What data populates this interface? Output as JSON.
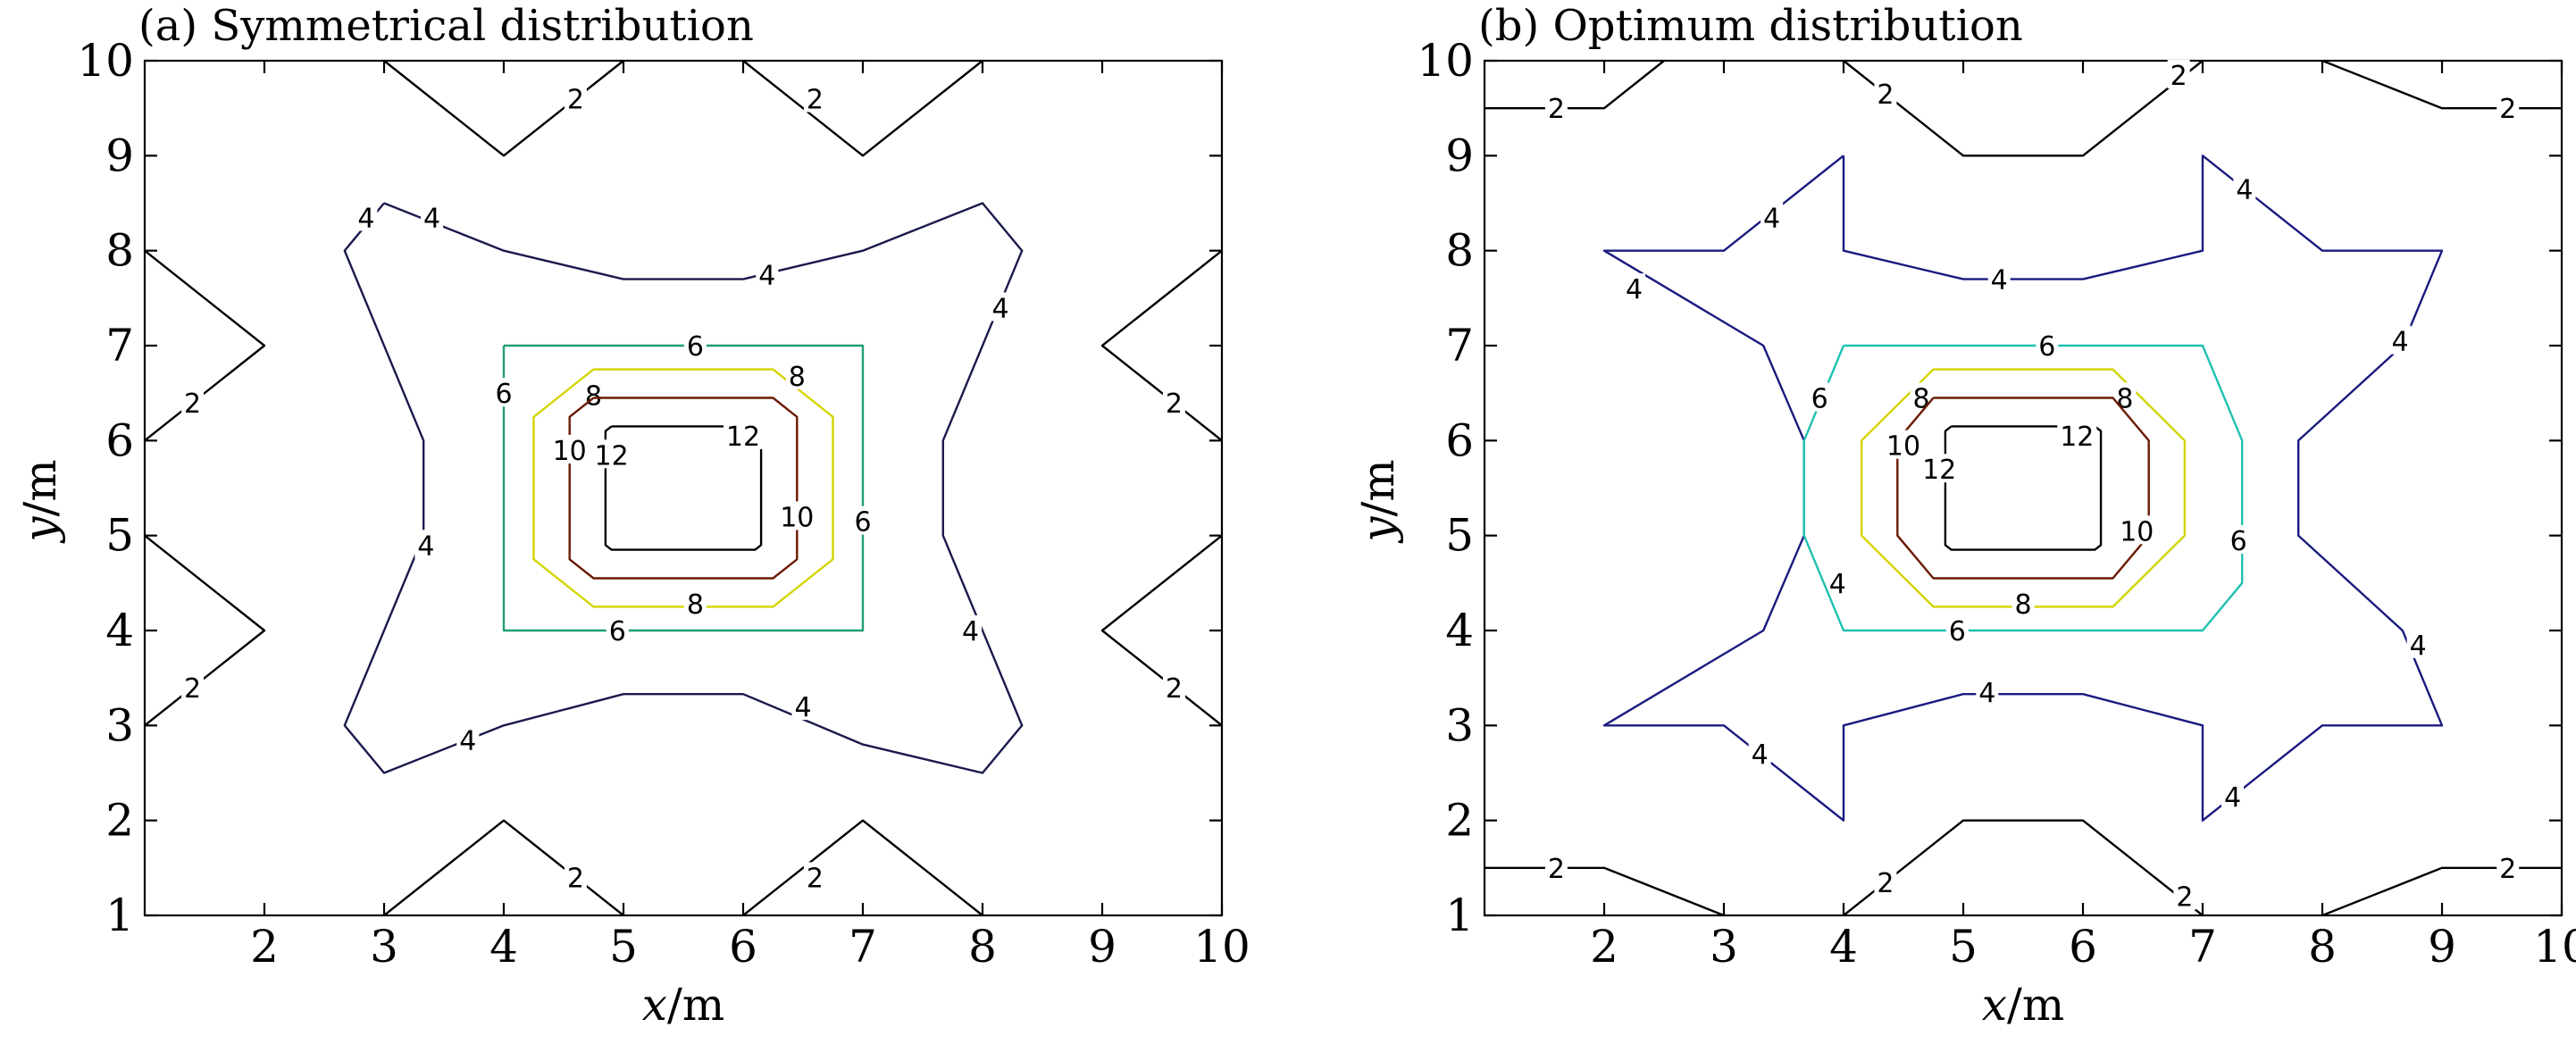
{
  "chart_data": [
    {
      "type": "contour",
      "title": "(a) Symmetrical distribution",
      "xlabel": "x/m",
      "ylabel": "y/m",
      "xlim": [
        1,
        10
      ],
      "ylim": [
        1,
        10
      ],
      "xticks": [
        "2",
        "3",
        "4",
        "5",
        "6",
        "7",
        "8",
        "9",
        "10"
      ],
      "yticks": [
        "1",
        "2",
        "3",
        "4",
        "5",
        "6",
        "7",
        "8",
        "9",
        "10"
      ],
      "levels": [
        {
          "level": "2",
          "color": "#000000",
          "lines": [
            [
              [
                3,
                10
              ],
              [
                4,
                9
              ],
              [
                5,
                10
              ]
            ],
            [
              [
                6,
                10
              ],
              [
                7,
                9
              ],
              [
                8,
                10
              ]
            ],
            [
              [
                1,
                8
              ],
              [
                2,
                7
              ],
              [
                1,
                6
              ]
            ],
            [
              [
                10,
                8
              ],
              [
                9,
                7
              ],
              [
                10,
                6
              ]
            ],
            [
              [
                1,
                5
              ],
              [
                2,
                4
              ],
              [
                1,
                3
              ]
            ],
            [
              [
                10,
                5
              ],
              [
                9,
                4
              ],
              [
                10,
                3
              ]
            ],
            [
              [
                3,
                1
              ],
              [
                4,
                2
              ],
              [
                5,
                1
              ]
            ],
            [
              [
                6,
                1
              ],
              [
                7,
                2
              ],
              [
                8,
                1
              ]
            ]
          ],
          "labels": [
            [
              4.6,
              9.6
            ],
            [
              6.6,
              9.6
            ],
            [
              1.4,
              6.4
            ],
            [
              9.6,
              6.4
            ],
            [
              1.4,
              3.4
            ],
            [
              9.6,
              3.4
            ],
            [
              4.6,
              1.4
            ],
            [
              6.6,
              1.4
            ]
          ]
        },
        {
          "level": "4",
          "color": "#1a1a4d",
          "lines": [
            [
              [
                3,
                8.5
              ],
              [
                4,
                8
              ],
              [
                5,
                7.7
              ],
              [
                6,
                7.7
              ],
              [
                7,
                8
              ],
              [
                8,
                8.5
              ],
              [
                8.33,
                8
              ],
              [
                7.67,
                6
              ],
              [
                7.67,
                5
              ],
              [
                8.33,
                3
              ],
              [
                8,
                2.5
              ],
              [
                7,
                2.8
              ],
              [
                6,
                3.33
              ],
              [
                5,
                3.33
              ],
              [
                4,
                3
              ],
              [
                3,
                2.5
              ],
              [
                2.67,
                3
              ],
              [
                3.33,
                5
              ],
              [
                3.33,
                6
              ],
              [
                2.67,
                8
              ],
              [
                3,
                8.5
              ]
            ]
          ],
          "labels": [
            [
              2.85,
              8.35
            ],
            [
              3.4,
              8.35
            ],
            [
              6.2,
              7.75
            ],
            [
              8.15,
              7.4
            ],
            [
              3.35,
              4.9
            ],
            [
              3.7,
              2.85
            ],
            [
              6.5,
              3.2
            ],
            [
              7.9,
              4.0
            ]
          ]
        },
        {
          "level": "6",
          "color": "#1e9f70",
          "lines": [
            [
              [
                4,
                7
              ],
              [
                7,
                7
              ],
              [
                7,
                4
              ],
              [
                4,
                4
              ],
              [
                4,
                7
              ]
            ]
          ],
          "labels": [
            [
              5.6,
              7
            ],
            [
              4,
              6.5
            ],
            [
              7,
              5.15
            ],
            [
              4.95,
              4
            ]
          ]
        },
        {
          "level": "8",
          "color": "#d4d400",
          "lines": [
            [
              [
                4.75,
                6.75
              ],
              [
                6.25,
                6.75
              ],
              [
                6.75,
                6.25
              ],
              [
                6.75,
                4.75
              ],
              [
                6.25,
                4.25
              ],
              [
                4.75,
                4.25
              ],
              [
                4.25,
                4.75
              ],
              [
                4.25,
                6.25
              ],
              [
                4.75,
                6.75
              ]
            ]
          ],
          "labels": [
            [
              4.75,
              6.48
            ],
            [
              6.45,
              6.68
            ],
            [
              5.6,
              4.28
            ]
          ]
        },
        {
          "level": "10",
          "color": "#6b1a00",
          "lines": [
            [
              [
                4.75,
                6.45
              ],
              [
                6.25,
                6.45
              ],
              [
                6.45,
                6.25
              ],
              [
                6.45,
                4.75
              ],
              [
                6.25,
                4.55
              ],
              [
                4.75,
                4.55
              ],
              [
                4.55,
                4.75
              ],
              [
                4.55,
                6.25
              ],
              [
                4.75,
                6.45
              ]
            ]
          ],
          "labels": [
            [
              4.55,
              5.9
            ],
            [
              6.45,
              5.2
            ]
          ]
        },
        {
          "level": "12",
          "color": "#000000",
          "lines": [
            [
              [
                4.9,
                6.15
              ],
              [
                6.1,
                6.15
              ],
              [
                6.15,
                6.1
              ],
              [
                6.15,
                4.9
              ],
              [
                6.1,
                4.85
              ],
              [
                4.9,
                4.85
              ],
              [
                4.85,
                4.9
              ],
              [
                4.85,
                6.1
              ],
              [
                4.9,
                6.15
              ]
            ]
          ],
          "labels": [
            [
              4.9,
              5.85
            ],
            [
              6.0,
              6.05
            ]
          ]
        }
      ]
    },
    {
      "type": "contour",
      "title": "(b) Optimum distribution",
      "xlabel": "x/m",
      "ylabel": "y/m",
      "xlim": [
        1,
        10
      ],
      "ylim": [
        1,
        10
      ],
      "xticks": [
        "2",
        "3",
        "4",
        "5",
        "6",
        "7",
        "8",
        "9",
        "10"
      ],
      "yticks": [
        "1",
        "2",
        "3",
        "4",
        "5",
        "6",
        "7",
        "8",
        "9",
        "10"
      ],
      "levels": [
        {
          "level": "2",
          "color": "#000000",
          "lines": [
            [
              [
                1,
                9.5
              ],
              [
                2,
                9.5
              ],
              [
                2.5,
                10
              ]
            ],
            [
              [
                4,
                10
              ],
              [
                5,
                9
              ],
              [
                6,
                9
              ],
              [
                7,
                10
              ]
            ],
            [
              [
                8,
                10
              ],
              [
                9,
                9.5
              ],
              [
                10,
                9.5
              ]
            ],
            [
              [
                1,
                1.5
              ],
              [
                2,
                1.5
              ],
              [
                3,
                1
              ]
            ],
            [
              [
                4,
                1
              ],
              [
                5,
                2
              ],
              [
                6,
                2
              ],
              [
                7,
                1
              ]
            ],
            [
              [
                8,
                1
              ],
              [
                9,
                1.5
              ],
              [
                10,
                1.5
              ]
            ]
          ],
          "labels": [
            [
              1.6,
              9.5
            ],
            [
              4.35,
              9.65
            ],
            [
              6.8,
              9.85
            ],
            [
              9.55,
              9.5
            ],
            [
              1.6,
              1.5
            ],
            [
              4.35,
              1.35
            ],
            [
              6.85,
              1.2
            ],
            [
              9.55,
              1.5
            ]
          ]
        },
        {
          "level": "4",
          "color": "#1a1a80",
          "lines": [
            [
              [
                4,
                9
              ],
              [
                4,
                8
              ],
              [
                5,
                7.7
              ],
              [
                6,
                7.7
              ],
              [
                7,
                8
              ],
              [
                7,
                9
              ],
              [
                8,
                8
              ],
              [
                9,
                8
              ],
              [
                8.67,
                7
              ],
              [
                7.8,
                6
              ],
              [
                7.8,
                5
              ],
              [
                8.67,
                4
              ],
              [
                9,
                3
              ],
              [
                8,
                3
              ],
              [
                7,
                2
              ],
              [
                7,
                3
              ],
              [
                6,
                3.33
              ],
              [
                5,
                3.33
              ],
              [
                4,
                3
              ],
              [
                4,
                2
              ],
              [
                3,
                3
              ],
              [
                2,
                3
              ],
              [
                3.33,
                4
              ],
              [
                3.67,
                5
              ],
              [
                3.67,
                6
              ],
              [
                3.33,
                7
              ],
              [
                2,
                8
              ],
              [
                3,
                8
              ],
              [
                4,
                9
              ]
            ]
          ],
          "labels": [
            [
              3.4,
              8.35
            ],
            [
              7.35,
              8.65
            ],
            [
              5.3,
              7.7
            ],
            [
              2.25,
              7.6
            ],
            [
              8.65,
              7.05
            ],
            [
              3.95,
              4.5
            ],
            [
              8.8,
              3.85
            ],
            [
              5.2,
              3.35
            ],
            [
              3.3,
              2.7
            ],
            [
              7.25,
              2.25
            ]
          ]
        },
        {
          "level": "6",
          "color": "#20c0b0",
          "lines": [
            [
              [
                4,
                7
              ],
              [
                7,
                7
              ],
              [
                7.33,
                6
              ],
              [
                7.33,
                4.5
              ],
              [
                7,
                4
              ],
              [
                4,
                4
              ],
              [
                3.67,
                5
              ],
              [
                3.67,
                6
              ],
              [
                4,
                7
              ]
            ]
          ],
          "labels": [
            [
              5.7,
              7
            ],
            [
              3.8,
              6.45
            ],
            [
              7.3,
              4.95
            ],
            [
              4.95,
              4
            ]
          ]
        },
        {
          "level": "8",
          "color": "#d4d400",
          "lines": [
            [
              [
                4.75,
                6.75
              ],
              [
                6.25,
                6.75
              ],
              [
                6.85,
                6
              ],
              [
                6.85,
                5
              ],
              [
                6.25,
                4.25
              ],
              [
                4.75,
                4.25
              ],
              [
                4.15,
                5
              ],
              [
                4.15,
                6
              ],
              [
                4.75,
                6.75
              ]
            ]
          ],
          "labels": [
            [
              4.65,
              6.45
            ],
            [
              6.35,
              6.45
            ],
            [
              5.5,
              4.28
            ]
          ]
        },
        {
          "level": "10",
          "color": "#6b1a00",
          "lines": [
            [
              [
                4.75,
                6.45
              ],
              [
                6.25,
                6.45
              ],
              [
                6.55,
                6
              ],
              [
                6.55,
                5
              ],
              [
                6.25,
                4.55
              ],
              [
                4.75,
                4.55
              ],
              [
                4.45,
                5
              ],
              [
                4.45,
                6
              ],
              [
                4.75,
                6.45
              ]
            ]
          ],
          "labels": [
            [
              4.5,
              5.95
            ],
            [
              6.45,
              5.05
            ]
          ]
        },
        {
          "level": "12",
          "color": "#000000",
          "lines": [
            [
              [
                4.9,
                6.15
              ],
              [
                6.1,
                6.15
              ],
              [
                6.15,
                6.1
              ],
              [
                6.15,
                4.9
              ],
              [
                6.1,
                4.85
              ],
              [
                4.9,
                4.85
              ],
              [
                4.85,
                4.9
              ],
              [
                4.85,
                6.1
              ],
              [
                4.9,
                6.15
              ]
            ]
          ],
          "labels": [
            [
              4.8,
              5.7
            ],
            [
              5.95,
              6.05
            ]
          ]
        }
      ]
    }
  ]
}
